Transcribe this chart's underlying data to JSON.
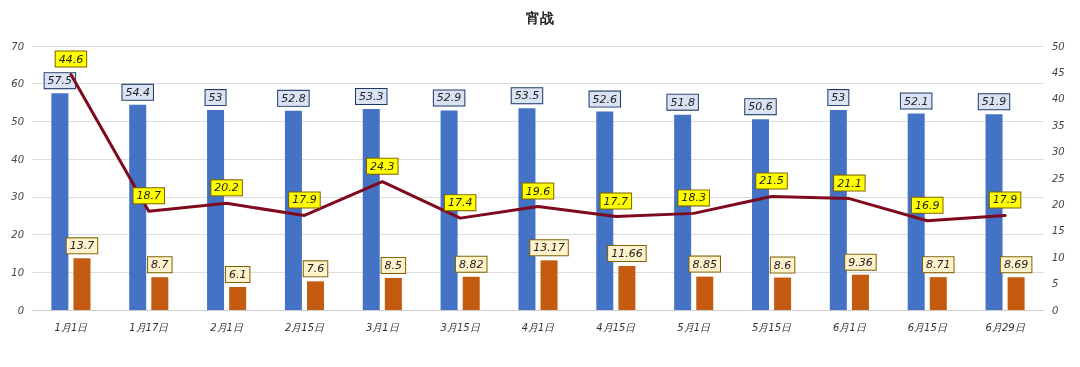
{
  "chart_data": {
    "type": "bar",
    "title": "宵战",
    "categories": [
      "1月1日",
      "1月17日",
      "2月1日",
      "2月15日",
      "3月1日",
      "3月15日",
      "4月1日",
      "4月15日",
      "5月1日",
      "5月15日",
      "6月1日",
      "6月15日",
      "6月29日"
    ],
    "series": [
      {
        "color": "#4472c4",
        "values": [
          57.5,
          54.4,
          53,
          52.8,
          53.3,
          52.9,
          53.5,
          52.6,
          51.8,
          50.6,
          53,
          52.1,
          51.9
        ]
      },
      {
        "color": "#c55a11",
        "values": [
          13.7,
          8.7,
          6.1,
          7.6,
          8.5,
          8.82,
          13.17,
          11.66,
          8.85,
          8.6,
          9.36,
          8.71,
          8.69
        ]
      },
      {
        "type": "line",
        "axis": "y2",
        "color": "#7f0a1e",
        "values": [
          44.6,
          18.7,
          20.2,
          17.9,
          24.3,
          17.4,
          19.6,
          17.7,
          18.3,
          21.5,
          21.1,
          16.9,
          17.9
        ]
      }
    ],
    "ylim": [
      0,
      70
    ],
    "yticks": [
      0,
      10,
      20,
      30,
      40,
      50,
      60,
      70
    ],
    "y2lim": [
      0,
      50
    ],
    "y2ticks": [
      0,
      5,
      10,
      15,
      20,
      25,
      30,
      35,
      40,
      45,
      50
    ],
    "grid": "y",
    "marker": "none",
    "line_style": "solid",
    "data_labels": true
  }
}
